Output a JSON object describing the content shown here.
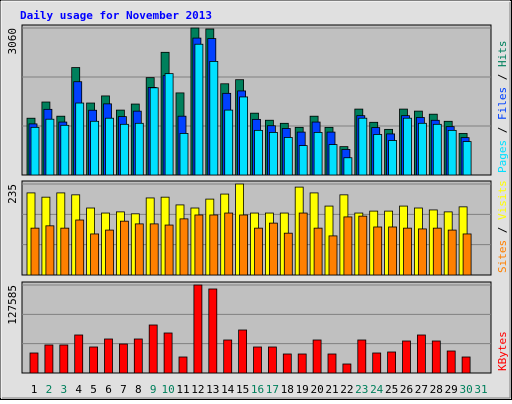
{
  "chart_data": [
    {
      "type": "bar",
      "title": "Daily usage for November 2013",
      "legend_separator": " / ",
      "ylim": [
        0,
        3060
      ],
      "yticks": [
        3060
      ],
      "series": [
        {
          "name": "Hits",
          "color": "#00805c",
          "values": [
            1182,
            1519,
            1224,
            2237,
            1498,
            1646,
            1351,
            1477,
            2026,
            2554,
            1709,
            3060,
            3039,
            1899,
            1984,
            1287,
            1140,
            1076,
            992,
            1224,
            992,
            591,
            1372,
            1097,
            950,
            1372,
            1330,
            1266,
            1118,
            865,
            0
          ]
        },
        {
          "name": "Files",
          "color": "#0040ff",
          "values": [
            1064,
            1367,
            1102,
            1942,
            1348,
            1481,
            1216,
            1329,
            1823,
            2068,
            1224,
            2850,
            2840,
            1700,
            1750,
            1158,
            1026,
            968,
            893,
            1102,
            893,
            532,
            1235,
            987,
            855,
            1235,
            1197,
            1139,
            1006,
            778,
            0
          ]
        },
        {
          "name": "Pages",
          "color": "#00e0ff",
          "values": [
            992,
            1161,
            1034,
            1498,
            1118,
            1182,
            1055,
            1076,
            1815,
            2110,
            865,
            2722,
            2364,
            1351,
            1625,
            929,
            886,
            781,
            612,
            886,
            633,
            359,
            1182,
            844,
            718,
            1182,
            1076,
            1055,
            929,
            696,
            0
          ]
        }
      ]
    },
    {
      "type": "bar",
      "legend_separator": " / ",
      "ylim": [
        0,
        235
      ],
      "yticks": [
        235
      ],
      "series": [
        {
          "name": "Visits",
          "color": "#ffff00",
          "values": [
            212,
            201,
            212,
            207,
            173,
            160,
            163,
            158,
            199,
            201,
            181,
            173,
            196,
            209,
            235,
            160,
            160,
            160,
            227,
            212,
            178,
            207,
            160,
            165,
            165,
            178,
            173,
            168,
            163,
            176,
            0
          ]
        },
        {
          "name": "Sites",
          "color": "#ff8000",
          "values": [
            121,
            127,
            121,
            142,
            106,
            116,
            139,
            132,
            132,
            129,
            145,
            155,
            155,
            160,
            155,
            121,
            134,
            108,
            160,
            121,
            101,
            150,
            152,
            124,
            124,
            121,
            119,
            121,
            116,
            106,
            0
          ]
        }
      ]
    },
    {
      "type": "bar",
      "ylim": [
        0,
        127585
      ],
      "yticks": [
        127585
      ],
      "categories": [
        "1",
        "2",
        "3",
        "4",
        "5",
        "6",
        "7",
        "8",
        "9",
        "10",
        "11",
        "12",
        "13",
        "14",
        "15",
        "16",
        "17",
        "18",
        "19",
        "20",
        "21",
        "22",
        "23",
        "24",
        "25",
        "26",
        "27",
        "28",
        "29",
        "30",
        "31"
      ],
      "category_colors": [
        "#000000",
        "#00805c",
        "#00805c",
        "#000000",
        "#000000",
        "#000000",
        "#000000",
        "#000000",
        "#00805c",
        "#00805c",
        "#000000",
        "#000000",
        "#000000",
        "#000000",
        "#000000",
        "#00805c",
        "#00805c",
        "#000000",
        "#000000",
        "#000000",
        "#000000",
        "#000000",
        "#00805c",
        "#00805c",
        "#000000",
        "#000000",
        "#000000",
        "#000000",
        "#000000",
        "#00805c",
        "#00805c"
      ],
      "series": [
        {
          "name": "KBytes",
          "color": "#ff0000",
          "values": [
            29000,
            40600,
            40600,
            55100,
            37700,
            49300,
            42050,
            49300,
            69600,
            58000,
            23200,
            127585,
            121800,
            47850,
            62350,
            37700,
            37700,
            27550,
            27550,
            47850,
            27550,
            13050,
            47850,
            29000,
            30450,
            46400,
            55100,
            46400,
            31900,
            23200,
            0
          ]
        }
      ]
    }
  ]
}
